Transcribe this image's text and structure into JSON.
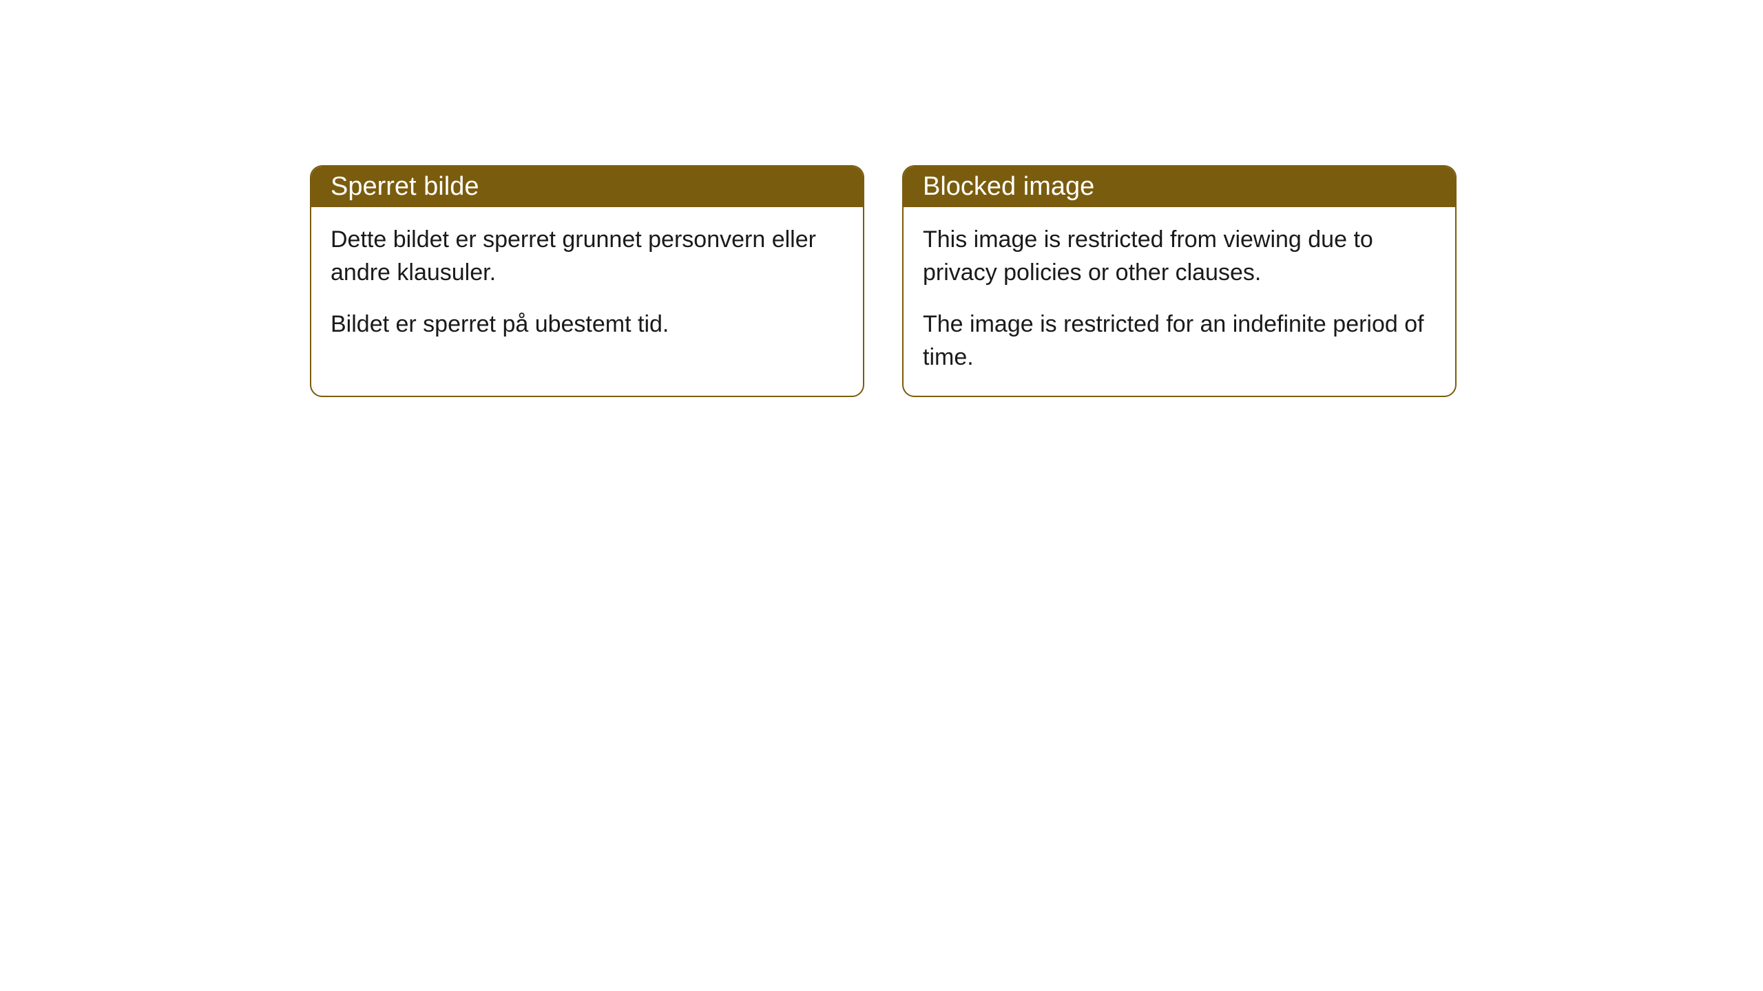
{
  "cards": [
    {
      "title": "Sperret bilde",
      "paragraph1": "Dette bildet er sperret grunnet personvern eller andre klausuler.",
      "paragraph2": "Bildet er sperret på ubestemt tid."
    },
    {
      "title": "Blocked image",
      "paragraph1": "This image is restricted from viewing due to privacy policies or other clauses.",
      "paragraph2": "The image is restricted for an indefinite period of time."
    }
  ],
  "styling": {
    "header_background_color": "#7a5c0e",
    "header_text_color": "#ffffff",
    "border_color": "#7a5c0e",
    "body_background_color": "#ffffff",
    "body_text_color": "#1a1a1a",
    "border_radius": 18,
    "title_fontsize": 38,
    "body_fontsize": 34
  }
}
